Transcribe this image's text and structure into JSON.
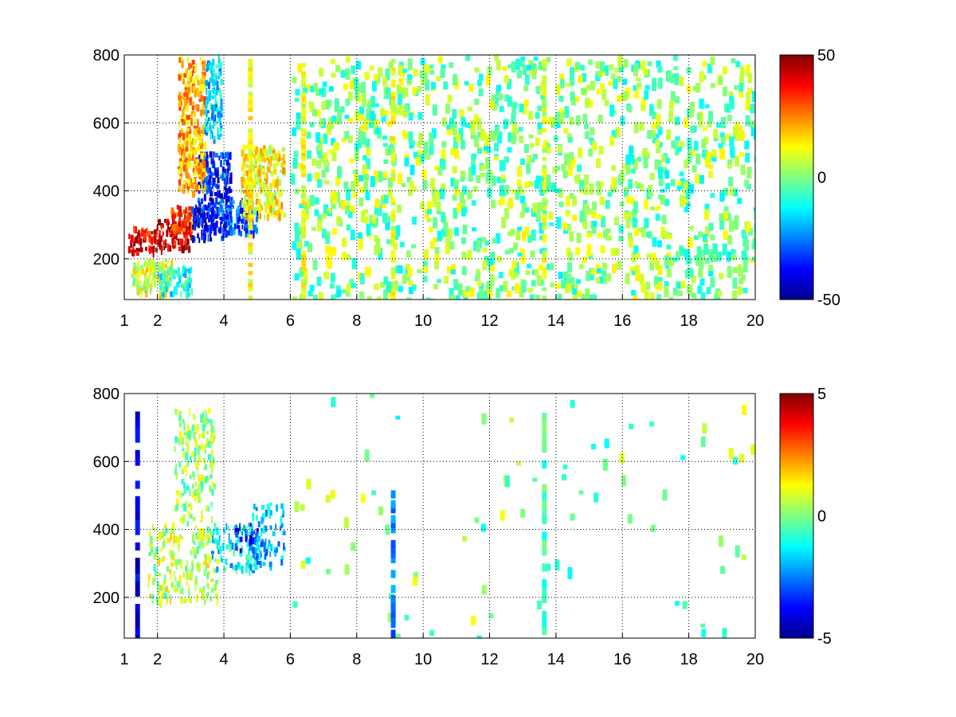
{
  "chart_data": [
    {
      "type": "heatmap",
      "title": "",
      "xlabel": "",
      "ylabel": "",
      "xlim": [
        1,
        20
      ],
      "ylim": [
        80,
        800
      ],
      "x_ticks": [
        1,
        2,
        4,
        6,
        8,
        10,
        12,
        14,
        16,
        18,
        20
      ],
      "y_ticks": [
        200,
        400,
        600,
        800
      ],
      "grid": true,
      "colormap": "jet",
      "colorbar": {
        "range": [
          -50,
          50
        ],
        "ticks": [
          50,
          0,
          -50
        ]
      },
      "regions": [
        {
          "x": [
            1.1,
            2.0
          ],
          "y": [
            220,
            300
          ],
          "value": 40
        },
        {
          "x": [
            2.0,
            3.0
          ],
          "y": [
            230,
            320
          ],
          "value": 42
        },
        {
          "x": [
            2.4,
            3.2
          ],
          "y": [
            280,
            360
          ],
          "value": 30
        },
        {
          "x": [
            3.0,
            4.0
          ],
          "y": [
            260,
            360
          ],
          "value": -40
        },
        {
          "x": [
            3.2,
            4.2
          ],
          "y": [
            320,
            520
          ],
          "value": -35
        },
        {
          "x": [
            2.6,
            3.4
          ],
          "y": [
            400,
            800
          ],
          "value": 20
        },
        {
          "x": [
            3.4,
            3.9
          ],
          "y": [
            560,
            800
          ],
          "value": -18
        },
        {
          "x": [
            4.0,
            5.0
          ],
          "y": [
            280,
            380
          ],
          "value": -30
        },
        {
          "x": [
            4.5,
            5.8
          ],
          "y": [
            330,
            540
          ],
          "value": 12
        },
        {
          "x": [
            1.2,
            2.4
          ],
          "y": [
            100,
            200
          ],
          "value": 8
        },
        {
          "x": [
            2.0,
            3.0
          ],
          "y": [
            100,
            180
          ],
          "value": -10
        }
      ],
      "vertical_bands": [
        {
          "x": 9.1,
          "value": 10
        },
        {
          "x": 13.65,
          "value": 8
        },
        {
          "x": 6.4,
          "value": 10
        },
        {
          "x": 4.8,
          "value": 12
        }
      ]
    },
    {
      "type": "heatmap",
      "title": "",
      "xlabel": "",
      "ylabel": "",
      "xlim": [
        1,
        20
      ],
      "ylim": [
        80,
        800
      ],
      "x_ticks": [
        1,
        2,
        4,
        6,
        8,
        10,
        12,
        14,
        16,
        18,
        20
      ],
      "y_ticks": [
        200,
        400,
        600,
        800
      ],
      "grid": true,
      "colormap": "jet",
      "colorbar": {
        "range": [
          -5,
          5
        ],
        "ticks": [
          5,
          0,
          -5
        ]
      },
      "regions": [
        {
          "x": [
            1.7,
            3.8
          ],
          "y": [
            190,
            420
          ],
          "value": 0.5
        },
        {
          "x": [
            2.5,
            3.7
          ],
          "y": [
            420,
            760
          ],
          "value": 0.2
        },
        {
          "x": [
            3.6,
            5.0
          ],
          "y": [
            280,
            420
          ],
          "value": -1.5
        },
        {
          "x": [
            4.8,
            5.8
          ],
          "y": [
            300,
            480
          ],
          "value": -2.0
        },
        {
          "x": [
            4.3,
            5.0
          ],
          "y": [
            340,
            420
          ],
          "value": -3.5
        }
      ],
      "vertical_bands": [
        {
          "x": 13.65,
          "y": [
            90,
            790
          ],
          "value": -0.5
        },
        {
          "x": 9.1,
          "y": [
            90,
            530
          ],
          "value": -2.5
        },
        {
          "x": 1.4,
          "y": [
            90,
            770
          ],
          "value": -4
        }
      ]
    }
  ]
}
